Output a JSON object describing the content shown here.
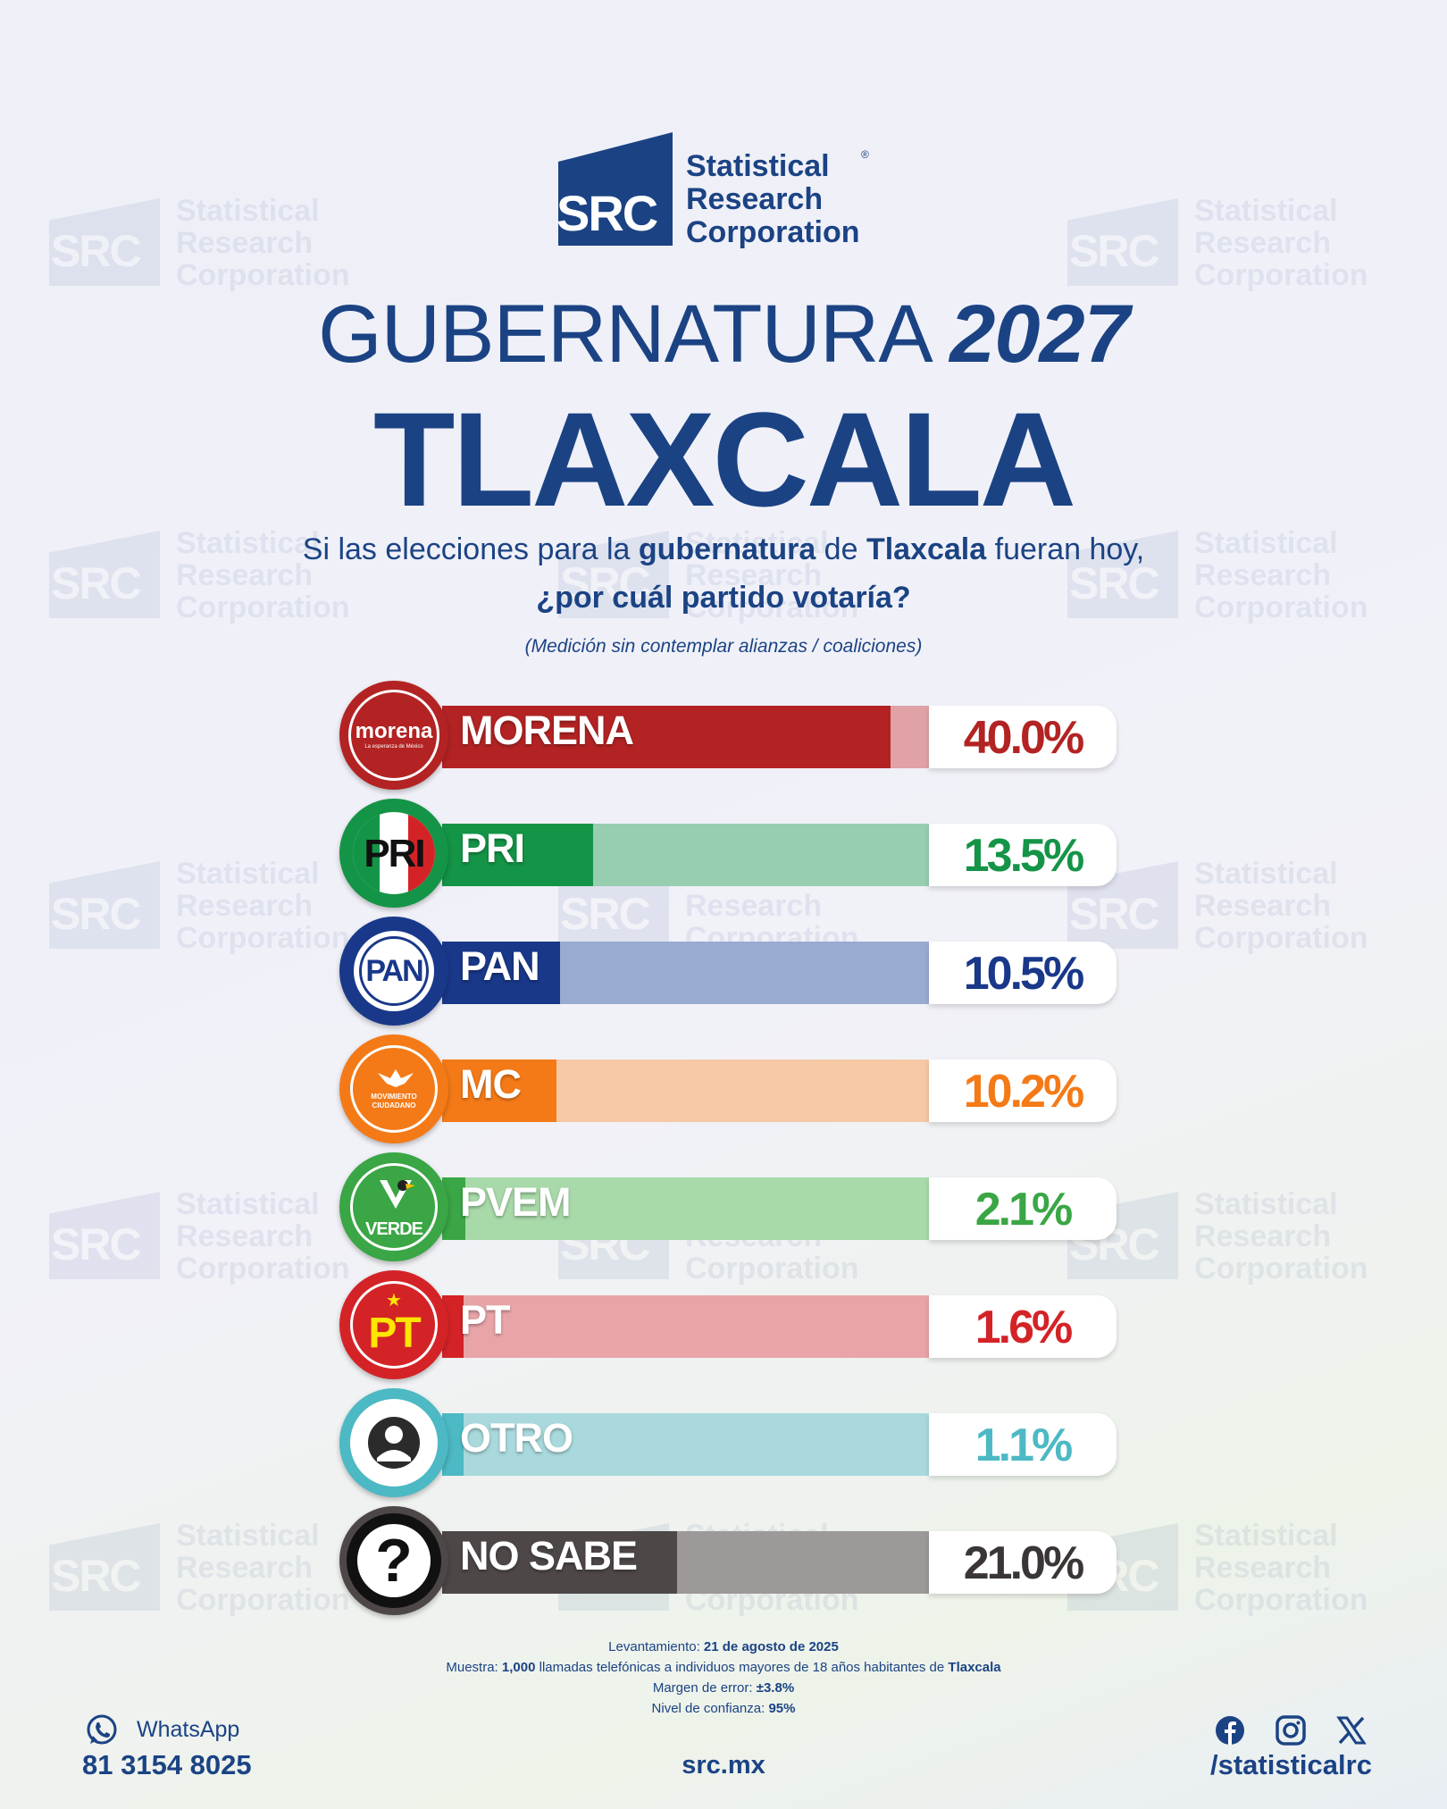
{
  "brand": {
    "mark": "SRC",
    "name_lines": [
      "Statistical",
      "Research",
      "Corporation"
    ],
    "registered": "®"
  },
  "header": {
    "title_word": "GUBERNATURA",
    "title_year": "2027",
    "state": "TLAXCALA"
  },
  "question": {
    "line1_a": "Si las elecciones para la ",
    "line1_b": "gubernatura",
    "line1_c": " de ",
    "line1_d": "Tlaxcala",
    "line1_e": " fueran hoy,",
    "line2": "¿por cuál partido votaría?",
    "note": "(Medición sin contemplar alianzas / coaliciones)"
  },
  "chart_data": {
    "type": "bar",
    "orientation": "horizontal",
    "categories": [
      "MORENA",
      "PRI",
      "PAN",
      "MC",
      "PVEM",
      "PT",
      "OTRO",
      "NO SABE"
    ],
    "values": [
      40.0,
      13.5,
      10.5,
      10.2,
      2.1,
      1.6,
      1.1,
      21.0
    ],
    "value_labels": [
      "40.0%",
      "13.5%",
      "10.5%",
      "10.2%",
      "2.1%",
      "1.6%",
      "1.1%",
      "21.0%"
    ],
    "unit": "%",
    "colors": [
      "#b32323",
      "#149447",
      "#19388a",
      "#f47a17",
      "#3aa645",
      "#d42327",
      "#4cb9c4",
      "#4d4747"
    ],
    "track_colors": [
      "#e0a2a6",
      "#97ceb0",
      "#9aabd2",
      "#f6c8a5",
      "#a8d9a9",
      "#e8a4a7",
      "#a9d9dd",
      "#9d9999"
    ],
    "pct_colors": [
      "#b32323",
      "#149447",
      "#19388a",
      "#f47a17",
      "#3aa645",
      "#d42327",
      "#4cb9c4",
      "#3b3636"
    ],
    "badges": [
      {
        "icon": "morena-logo",
        "text": "morena",
        "subtext": "La esperanza de México"
      },
      {
        "icon": "pri-logo",
        "text": "PRI"
      },
      {
        "icon": "pan-logo",
        "text": "PAN"
      },
      {
        "icon": "mc-logo",
        "text": "MOVIMIENTO CIUDADANO"
      },
      {
        "icon": "pvem-logo",
        "text": "VERDE"
      },
      {
        "icon": "pt-logo",
        "text": "PT"
      },
      {
        "icon": "person-icon"
      },
      {
        "icon": "question-icon",
        "text": "?"
      }
    ],
    "xlim": [
      0,
      100
    ]
  },
  "footer": {
    "levantamiento_label": "Levantamiento: ",
    "levantamiento_value": "21 de agosto de 2025",
    "muestra_label": "Muestra: ",
    "muestra_n": "1,000",
    "muestra_text": " llamadas telefónicas a individuos mayores de 18 años habitantes de ",
    "muestra_place": "Tlaxcala",
    "margen_label": "Margen de error: ",
    "margen_value": "±3.8%",
    "nivel_label": "Nivel de confianza: ",
    "nivel_value": "95%",
    "whatsapp_label": "WhatsApp",
    "whatsapp_number": "81 3154 8025",
    "website": "src.mx",
    "social_handle": "/statisticalrc",
    "social_icons": [
      "facebook-icon",
      "instagram-icon",
      "x-icon"
    ]
  }
}
